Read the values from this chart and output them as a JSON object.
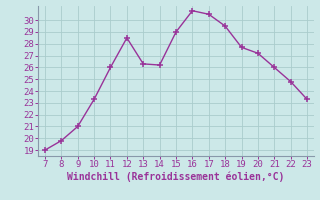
{
  "x": [
    7,
    8,
    9,
    10,
    11,
    12,
    13,
    14,
    15,
    16,
    17,
    18,
    19,
    20,
    21,
    22,
    23
  ],
  "y": [
    19,
    19.8,
    21,
    23.3,
    26,
    28.5,
    26.3,
    26.2,
    29,
    30.8,
    30.5,
    29.5,
    27.7,
    27.2,
    26,
    24.8,
    23.3
  ],
  "line_color": "#993399",
  "marker_color": "#993399",
  "bg_color": "#cce8e8",
  "grid_color": "#aacccc",
  "xlabel": "Windchill (Refroidissement éolien,°C)",
  "xlabel_color": "#993399",
  "tick_color": "#993399",
  "spine_color": "#8899aa",
  "ylim_min": 18.5,
  "ylim_max": 31.2,
  "xlim_min": 6.6,
  "xlim_max": 23.4,
  "yticks": [
    19,
    20,
    21,
    22,
    23,
    24,
    25,
    26,
    27,
    28,
    29,
    30
  ],
  "xticks": [
    7,
    8,
    9,
    10,
    11,
    12,
    13,
    14,
    15,
    16,
    17,
    18,
    19,
    20,
    21,
    22,
    23
  ],
  "tick_fontsize": 6.5,
  "xlabel_fontsize": 7.0,
  "linewidth": 1.0,
  "markersize": 4,
  "markeredgewidth": 1.1
}
